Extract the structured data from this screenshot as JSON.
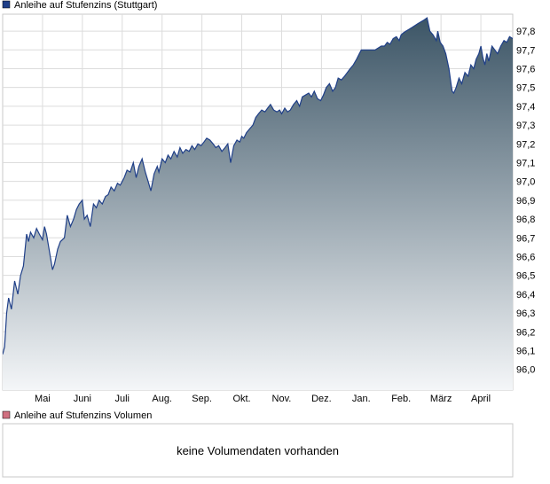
{
  "chart_data": {
    "type": "area",
    "title": "",
    "legend_price": "Anleihe auf Stufenzins (Stuttgart)",
    "legend_volume": "Anleihe auf Stufenzins Volumen",
    "volume_message": "keine Volumendaten vorhanden",
    "series_color": "#1f3f88",
    "volume_color": "#d07080",
    "fill_top": "#3c5566",
    "fill_bottom": "#f4f6f8",
    "ylim": [
      95.89,
      97.89
    ],
    "yticks": [
      "97,8",
      "97,7",
      "97,6",
      "97,5",
      "97,4",
      "97,3",
      "97,2",
      "97,1",
      "97,0",
      "96,9",
      "96,8",
      "96,7",
      "96,6",
      "96,5",
      "96,4",
      "96,3",
      "96,2",
      "96,1",
      "96,0"
    ],
    "xlim": [
      0,
      12.8
    ],
    "xticks": [
      {
        "label": "Mai",
        "pos": 1.0
      },
      {
        "label": "Juni",
        "pos": 2.0
      },
      {
        "label": "Juli",
        "pos": 3.0
      },
      {
        "label": "Aug.",
        "pos": 4.0
      },
      {
        "label": "Sep.",
        "pos": 5.0
      },
      {
        "label": "Okt.",
        "pos": 6.0
      },
      {
        "label": "Nov.",
        "pos": 7.0
      },
      {
        "label": "Dez.",
        "pos": 8.0
      },
      {
        "label": "Jan.",
        "pos": 9.0
      },
      {
        "label": "Feb.",
        "pos": 10.0
      },
      {
        "label": "März",
        "pos": 11.0
      },
      {
        "label": "April",
        "pos": 12.0
      }
    ],
    "grid": true,
    "x": [
      0.0,
      0.05,
      0.1,
      0.15,
      0.22,
      0.3,
      0.38,
      0.45,
      0.52,
      0.6,
      0.65,
      0.7,
      0.78,
      0.85,
      0.92,
      1.0,
      1.05,
      1.1,
      1.18,
      1.25,
      1.3,
      1.38,
      1.45,
      1.55,
      1.62,
      1.7,
      1.78,
      1.85,
      1.92,
      2.0,
      2.05,
      2.12,
      2.2,
      2.28,
      2.35,
      2.42,
      2.5,
      2.58,
      2.65,
      2.72,
      2.8,
      2.88,
      2.95,
      3.0,
      3.05,
      3.12,
      3.2,
      3.28,
      3.35,
      3.42,
      3.5,
      3.58,
      3.65,
      3.72,
      3.8,
      3.88,
      3.92,
      4.0,
      4.08,
      4.15,
      4.22,
      4.3,
      4.38,
      4.45,
      4.52,
      4.6,
      4.68,
      4.75,
      4.82,
      4.9,
      4.98,
      5.05,
      5.12,
      5.2,
      5.28,
      5.35,
      5.42,
      5.5,
      5.58,
      5.65,
      5.72,
      5.8,
      5.88,
      5.95,
      6.0,
      6.05,
      6.12,
      6.2,
      6.28,
      6.35,
      6.42,
      6.5,
      6.58,
      6.65,
      6.72,
      6.8,
      6.88,
      6.95,
      7.0,
      7.08,
      7.15,
      7.22,
      7.3,
      7.38,
      7.45,
      7.52,
      7.6,
      7.68,
      7.75,
      7.82,
      7.9,
      7.98,
      8.05,
      8.12,
      8.2,
      8.28,
      8.35,
      8.42,
      8.5,
      8.58,
      8.65,
      8.72,
      8.8,
      8.88,
      8.95,
      9.0,
      9.05,
      9.12,
      9.2,
      9.28,
      9.35,
      9.42,
      9.5,
      9.58,
      9.65,
      9.72,
      9.8,
      9.88,
      9.95,
      10.0,
      10.05,
      10.12,
      10.2,
      10.28,
      10.35,
      10.42,
      10.5,
      10.58,
      10.65,
      10.72,
      10.8,
      10.88,
      10.92,
      10.98,
      11.05,
      11.12,
      11.2,
      11.25,
      11.28,
      11.32,
      11.38,
      11.45,
      11.52,
      11.6,
      11.68,
      11.75,
      11.82,
      11.88,
      11.95,
      12.0,
      12.05,
      12.1,
      12.15,
      12.2,
      12.28,
      12.35,
      12.42,
      12.5,
      12.58,
      12.65,
      12.72,
      12.8
    ],
    "y": [
      96.08,
      96.12,
      96.3,
      96.38,
      96.32,
      96.47,
      96.4,
      96.5,
      96.55,
      96.72,
      96.68,
      96.73,
      96.7,
      96.75,
      96.72,
      96.69,
      96.76,
      96.72,
      96.62,
      96.53,
      96.56,
      96.64,
      96.68,
      96.7,
      96.82,
      96.76,
      96.8,
      96.85,
      96.88,
      96.9,
      96.8,
      96.82,
      96.76,
      96.88,
      96.86,
      96.9,
      96.88,
      96.92,
      96.93,
      96.97,
      96.95,
      96.99,
      96.98,
      97.0,
      97.02,
      97.06,
      97.05,
      97.1,
      97.02,
      97.08,
      97.12,
      97.05,
      97.0,
      96.95,
      97.04,
      97.08,
      97.05,
      97.12,
      97.1,
      97.14,
      97.12,
      97.16,
      97.13,
      97.18,
      97.15,
      97.17,
      97.16,
      97.19,
      97.17,
      97.2,
      97.19,
      97.21,
      97.23,
      97.22,
      97.2,
      97.18,
      97.19,
      97.16,
      97.18,
      97.2,
      97.1,
      97.19,
      97.22,
      97.21,
      97.24,
      97.23,
      97.26,
      97.28,
      97.3,
      97.34,
      97.36,
      97.38,
      97.37,
      97.39,
      97.41,
      97.38,
      97.37,
      97.38,
      97.36,
      97.39,
      97.37,
      97.38,
      97.41,
      97.43,
      97.4,
      97.45,
      97.46,
      97.47,
      97.45,
      97.48,
      97.44,
      97.43,
      97.46,
      97.5,
      97.52,
      97.48,
      97.5,
      97.55,
      97.54,
      97.56,
      97.58,
      97.6,
      97.62,
      97.65,
      97.68,
      97.7,
      97.7,
      97.7,
      97.7,
      97.7,
      97.7,
      97.71,
      97.72,
      97.72,
      97.74,
      97.73,
      97.76,
      97.77,
      97.75,
      97.78,
      97.79,
      97.8,
      97.81,
      97.82,
      97.83,
      97.84,
      97.85,
      97.86,
      97.87,
      97.8,
      97.78,
      97.75,
      97.8,
      97.74,
      97.72,
      97.68,
      97.6,
      97.52,
      97.48,
      97.47,
      97.5,
      97.55,
      97.52,
      97.58,
      97.56,
      97.62,
      97.6,
      97.65,
      97.68,
      97.72,
      97.66,
      97.62,
      97.68,
      97.64,
      97.72,
      97.7,
      97.68,
      97.72,
      97.75,
      97.74,
      97.77,
      97.76
    ]
  }
}
